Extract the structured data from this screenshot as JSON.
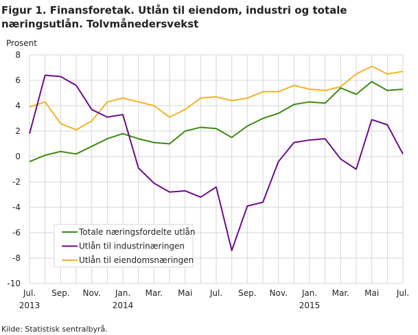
{
  "chart_data": {
    "type": "line",
    "title": "Figur 1. Finansforetak. Utlån til eiendom, industri og totale næringsutlån. Tolvmånedersvekst",
    "ylabel": "Prosent",
    "ylim": [
      -10,
      8
    ],
    "yticks": [
      8,
      6,
      4,
      2,
      0,
      -2,
      -4,
      -6,
      -8,
      -10
    ],
    "grid": true,
    "legend_position": "bottom-left",
    "x": [
      "2013-07",
      "2013-08",
      "2013-09",
      "2013-10",
      "2013-11",
      "2013-12",
      "2014-01",
      "2014-02",
      "2014-03",
      "2014-04",
      "2014-05",
      "2014-06",
      "2014-07",
      "2014-08",
      "2014-09",
      "2014-10",
      "2014-11",
      "2014-12",
      "2015-01",
      "2015-02",
      "2015-03",
      "2015-04",
      "2015-05",
      "2015-06",
      "2015-07"
    ],
    "xtick_labels": [
      {
        "month": "Jul.",
        "year": "2013"
      },
      {
        "month": "Sep.",
        "year": ""
      },
      {
        "month": "Nov.",
        "year": ""
      },
      {
        "month": "Jan.",
        "year": "2014"
      },
      {
        "month": "Mar.",
        "year": ""
      },
      {
        "month": "Mai",
        "year": ""
      },
      {
        "month": "Jul.",
        "year": ""
      },
      {
        "month": "Sep.",
        "year": ""
      },
      {
        "month": "Nov.",
        "year": ""
      },
      {
        "month": "Jan.",
        "year": "2015"
      },
      {
        "month": "Mar.",
        "year": ""
      },
      {
        "month": "Mai",
        "year": ""
      },
      {
        "month": "Jul.",
        "year": ""
      }
    ],
    "series": [
      {
        "name": "Totale næringsfordelte utlån",
        "color": "#3a8a10",
        "values": [
          -0.4,
          0.1,
          0.4,
          0.2,
          0.8,
          1.4,
          1.8,
          1.4,
          1.1,
          1.0,
          2.0,
          2.3,
          2.2,
          1.5,
          2.4,
          3.0,
          3.4,
          4.1,
          4.3,
          4.2,
          5.4,
          4.9,
          5.9,
          5.2,
          5.3
        ]
      },
      {
        "name": "Utlån til industrinæringen",
        "color": "#6a0b8a",
        "values": [
          1.8,
          6.4,
          6.3,
          5.6,
          3.7,
          3.1,
          3.3,
          -0.9,
          -2.1,
          -2.8,
          -2.7,
          -3.2,
          -2.4,
          -7.4,
          -3.9,
          -3.6,
          -0.4,
          1.1,
          1.3,
          1.4,
          -0.2,
          -1.0,
          2.9,
          2.5,
          0.2
        ]
      },
      {
        "name": "Utlån til eiendomsnæringen",
        "color": "#f0b323",
        "values": [
          3.9,
          4.3,
          2.6,
          2.1,
          2.8,
          4.3,
          4.6,
          4.3,
          4.0,
          3.1,
          3.7,
          4.6,
          4.7,
          4.4,
          4.6,
          5.1,
          5.1,
          5.6,
          5.3,
          5.2,
          5.5,
          6.5,
          7.1,
          6.5,
          6.7
        ]
      }
    ]
  },
  "source": "Kilde: Statistisk sentralbyrå."
}
